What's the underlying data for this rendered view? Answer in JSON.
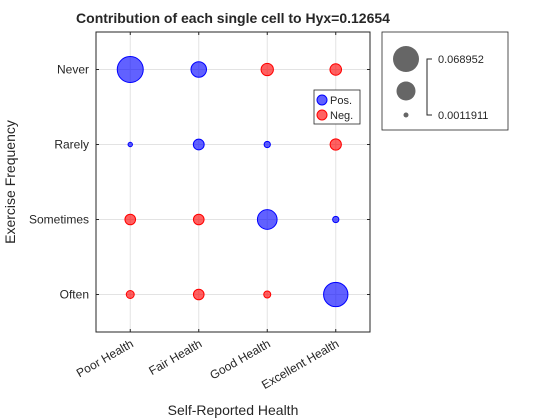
{
  "chart_data": {
    "type": "scatter",
    "title": "Contribution of each single cell to Hyx=0.12654",
    "xlabel": "Self-Reported Health",
    "ylabel": "Exercise Frequency",
    "x_categories": [
      "Poor Health",
      "Fair Health",
      "Good Health",
      "Excellent Health"
    ],
    "y_categories": [
      "Never",
      "Rarely",
      "Sometimes",
      "Often"
    ],
    "grid": true,
    "legend": {
      "placement": "inside-top-right",
      "entries": [
        {
          "label": "Pos.",
          "color": "#0000ff"
        },
        {
          "label": "Neg.",
          "color": "#ff0000"
        }
      ]
    },
    "size_legend": {
      "placement": "outside-right",
      "max_label": "0.068952",
      "min_label": "0.0011911",
      "max_value": 0.068952,
      "min_value": 0.0011911
    },
    "points": [
      {
        "x": "Poor Health",
        "y": "Never",
        "value": 0.068952,
        "sign": "Pos."
      },
      {
        "x": "Fair Health",
        "y": "Never",
        "value": 0.0245,
        "sign": "Pos."
      },
      {
        "x": "Good Health",
        "y": "Never",
        "value": 0.0155,
        "sign": "Neg."
      },
      {
        "x": "Excellent Health",
        "y": "Never",
        "value": 0.0136,
        "sign": "Neg."
      },
      {
        "x": "Poor Health",
        "y": "Rarely",
        "value": 0.0011911,
        "sign": "Pos."
      },
      {
        "x": "Fair Health",
        "y": "Rarely",
        "value": 0.012,
        "sign": "Pos."
      },
      {
        "x": "Good Health",
        "y": "Rarely",
        "value": 0.004,
        "sign": "Pos."
      },
      {
        "x": "Excellent Health",
        "y": "Rarely",
        "value": 0.013,
        "sign": "Neg."
      },
      {
        "x": "Poor Health",
        "y": "Sometimes",
        "value": 0.0115,
        "sign": "Neg."
      },
      {
        "x": "Fair Health",
        "y": "Sometimes",
        "value": 0.0115,
        "sign": "Neg."
      },
      {
        "x": "Good Health",
        "y": "Sometimes",
        "value": 0.0395,
        "sign": "Pos."
      },
      {
        "x": "Excellent Health",
        "y": "Sometimes",
        "value": 0.004,
        "sign": "Pos."
      },
      {
        "x": "Poor Health",
        "y": "Often",
        "value": 0.0065,
        "sign": "Neg."
      },
      {
        "x": "Fair Health",
        "y": "Often",
        "value": 0.0115,
        "sign": "Neg."
      },
      {
        "x": "Good Health",
        "y": "Often",
        "value": 0.005,
        "sign": "Neg."
      },
      {
        "x": "Excellent Health",
        "y": "Often",
        "value": 0.0605,
        "sign": "Pos."
      }
    ]
  }
}
